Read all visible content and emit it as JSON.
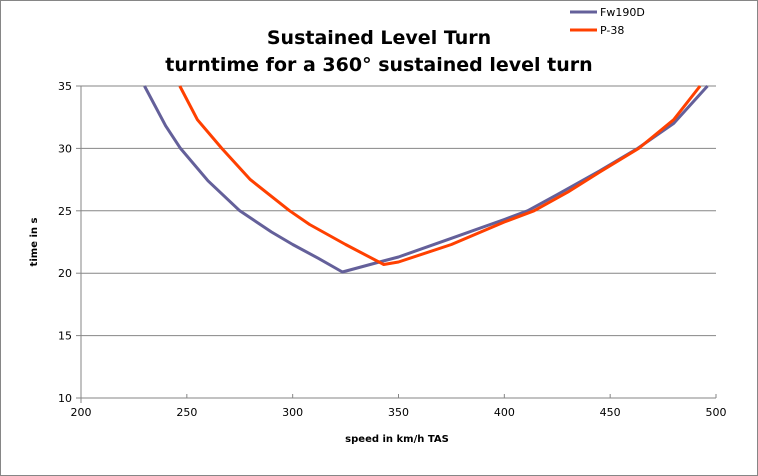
{
  "chart_data": {
    "type": "line",
    "title": "Sustained Level Turn",
    "subtitle": "turntime for a 360°  sustained level turn",
    "xlabel": "speed in km/h TAS",
    "ylabel": "time in s",
    "xlim": [
      200,
      500
    ],
    "ylim": [
      10,
      35
    ],
    "xticks": [
      "200",
      "250",
      "300",
      "350",
      "400",
      "450",
      "500"
    ],
    "yticks": [
      "10",
      "15",
      "20",
      "25",
      "30",
      "35"
    ],
    "grid": "horizontal",
    "legend_position": "top-right",
    "series": [
      {
        "name": "Fw190D",
        "color": "#64609A",
        "x": [
          230,
          240,
          247,
          260,
          275,
          290,
          300,
          312,
          323.5,
          341,
          350,
          375,
          400,
          411,
          425,
          445,
          463,
          480,
          496
        ],
        "y": [
          35,
          31.8,
          30,
          27.4,
          25,
          23.3,
          22.3,
          21.2,
          20.1,
          20.9,
          21.3,
          22.8,
          24.3,
          25,
          26.3,
          28.2,
          30,
          32,
          35
        ]
      },
      {
        "name": "P-38",
        "color": "#FF4000",
        "x": [
          246.7,
          255,
          266.5,
          280,
          298.6,
          308,
          325,
          343,
          350,
          375,
          400,
          414,
          430,
          445,
          463.5,
          480,
          492.5
        ],
        "y": [
          35,
          32.3,
          30,
          27.5,
          25,
          23.9,
          22.3,
          20.7,
          20.9,
          22.3,
          24.1,
          25,
          26.5,
          28.1,
          30,
          32.3,
          35
        ]
      }
    ]
  }
}
